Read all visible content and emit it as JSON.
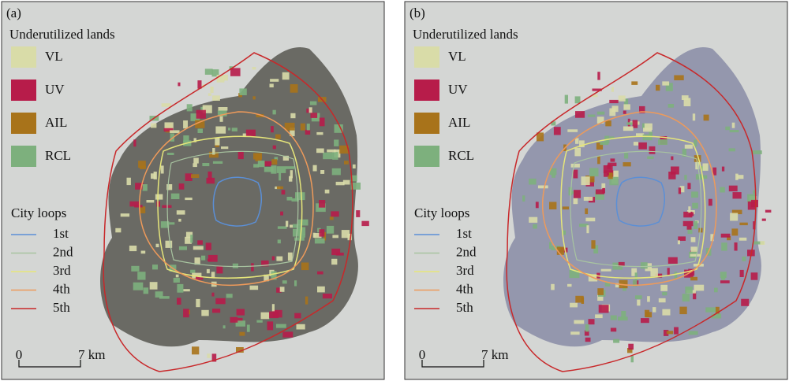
{
  "panels": [
    {
      "label": "(a)",
      "legend_title": "Underutilized lands",
      "land_types": [
        {
          "label": "VL",
          "color": "#d9dca8"
        },
        {
          "label": "UV",
          "color": "#b71c4a"
        },
        {
          "label": "AIL",
          "color": "#a8731a"
        },
        {
          "label": "RCL",
          "color": "#7db07d"
        }
      ],
      "loops_title": "City loops",
      "loops": [
        {
          "label": "1st",
          "color": "#5b8fd6"
        },
        {
          "label": "2nd",
          "color": "#a8c4a0"
        },
        {
          "label": "3rd",
          "color": "#e6e67a"
        },
        {
          "label": "4th",
          "color": "#ee9a5a"
        },
        {
          "label": "5th",
          "color": "#c8282a"
        }
      ],
      "scale": [
        "0",
        "7 km"
      ]
    },
    {
      "label": "(b)",
      "legend_title": "Underutilized lands",
      "land_types": [
        {
          "label": "VL",
          "color": "#d9dca8"
        },
        {
          "label": "UV",
          "color": "#b71c4a"
        },
        {
          "label": "AIL",
          "color": "#a8731a"
        },
        {
          "label": "RCL",
          "color": "#7db07d"
        }
      ],
      "loops_title": "City loops",
      "loops": [
        {
          "label": "1st",
          "color": "#5b8fd6"
        },
        {
          "label": "2nd",
          "color": "#a8c4a0"
        },
        {
          "label": "3rd",
          "color": "#e6e67a"
        },
        {
          "label": "4th",
          "color": "#ee9a5a"
        },
        {
          "label": "5th",
          "color": "#c8282a"
        }
      ],
      "scale": [
        "0",
        "7 km"
      ]
    }
  ]
}
